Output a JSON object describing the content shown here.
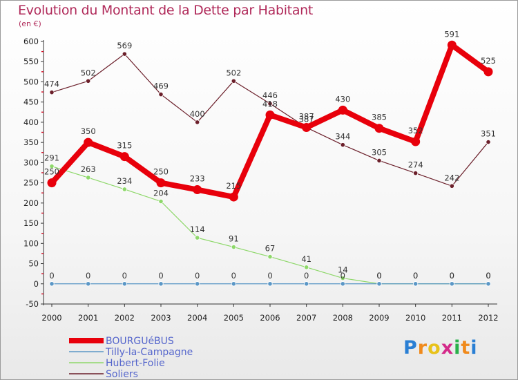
{
  "title": "Evolution du Montant de la Dette par Habitant",
  "unit": "(en €)",
  "logo": {
    "letters": [
      "P",
      "r",
      "o",
      "x",
      "i",
      "t",
      "i"
    ],
    "colors": [
      "#2a7fd4",
      "#f08a1c",
      "#e8c21a",
      "#d42a8a",
      "#2ab04a",
      "#f08a1c",
      "#2a7fd4"
    ]
  },
  "chart_data": {
    "type": "line",
    "categories": [
      "2000",
      "2001",
      "2002",
      "2003",
      "2004",
      "2005",
      "2006",
      "2007",
      "2008",
      "2009",
      "2010",
      "2011",
      "2012"
    ],
    "y_ticks": [
      "-50",
      "0",
      "50",
      "100",
      "150",
      "200",
      "250",
      "300",
      "350",
      "400",
      "450",
      "500",
      "550",
      "600"
    ],
    "ylim": [
      -50,
      600
    ],
    "grid": false,
    "legend_position": "bottom-left",
    "series": [
      {
        "name": "Soliers",
        "color": "#6b1f2a",
        "width": 1.2,
        "marker": 3.2,
        "values": [
          474,
          502,
          569,
          469,
          400,
          502,
          446,
          387,
          344,
          305,
          274,
          242,
          351
        ],
        "labels": [
          "474",
          "502",
          "569",
          "469",
          "400",
          "502",
          "446",
          "387",
          "344",
          "305",
          "274",
          "242",
          "351"
        ]
      },
      {
        "name": "Hubert-Folie",
        "color": "#8ed86a",
        "width": 1.2,
        "marker": 3.2,
        "values": [
          291,
          263,
          234,
          204,
          114,
          91,
          67,
          41,
          14,
          0,
          0,
          0,
          0
        ],
        "labels": [
          "291",
          "263",
          "234",
          "204",
          "114",
          "91",
          "67",
          "41",
          "14",
          "0",
          "0",
          "0",
          "0"
        ]
      },
      {
        "name": "Tilly-la-Campagne",
        "color": "#5b97c6",
        "width": 1.2,
        "marker": 3.2,
        "values": [
          0,
          0,
          0,
          0,
          0,
          0,
          0,
          0,
          0,
          0,
          0,
          0,
          0
        ],
        "labels": [
          "0",
          "0",
          "0",
          "0",
          "0",
          "0",
          "0",
          "0",
          "0",
          "0",
          "0",
          "0",
          "0"
        ]
      },
      {
        "name": "BOURGUéBUS",
        "color": "#e8000b",
        "width": 8,
        "marker": 6.5,
        "values": [
          250,
          350,
          315,
          250,
          233,
          215,
          418,
          387,
          430,
          385,
          352,
          591,
          525
        ],
        "labels": [
          "250",
          "350",
          "315",
          "250",
          "233",
          "215",
          "418",
          "387",
          "430",
          "385",
          "352",
          "591",
          "525"
        ]
      }
    ],
    "legend": [
      "BOURGUéBUS",
      "Tilly-la-Campagne",
      "Hubert-Folie",
      "Soliers"
    ]
  }
}
